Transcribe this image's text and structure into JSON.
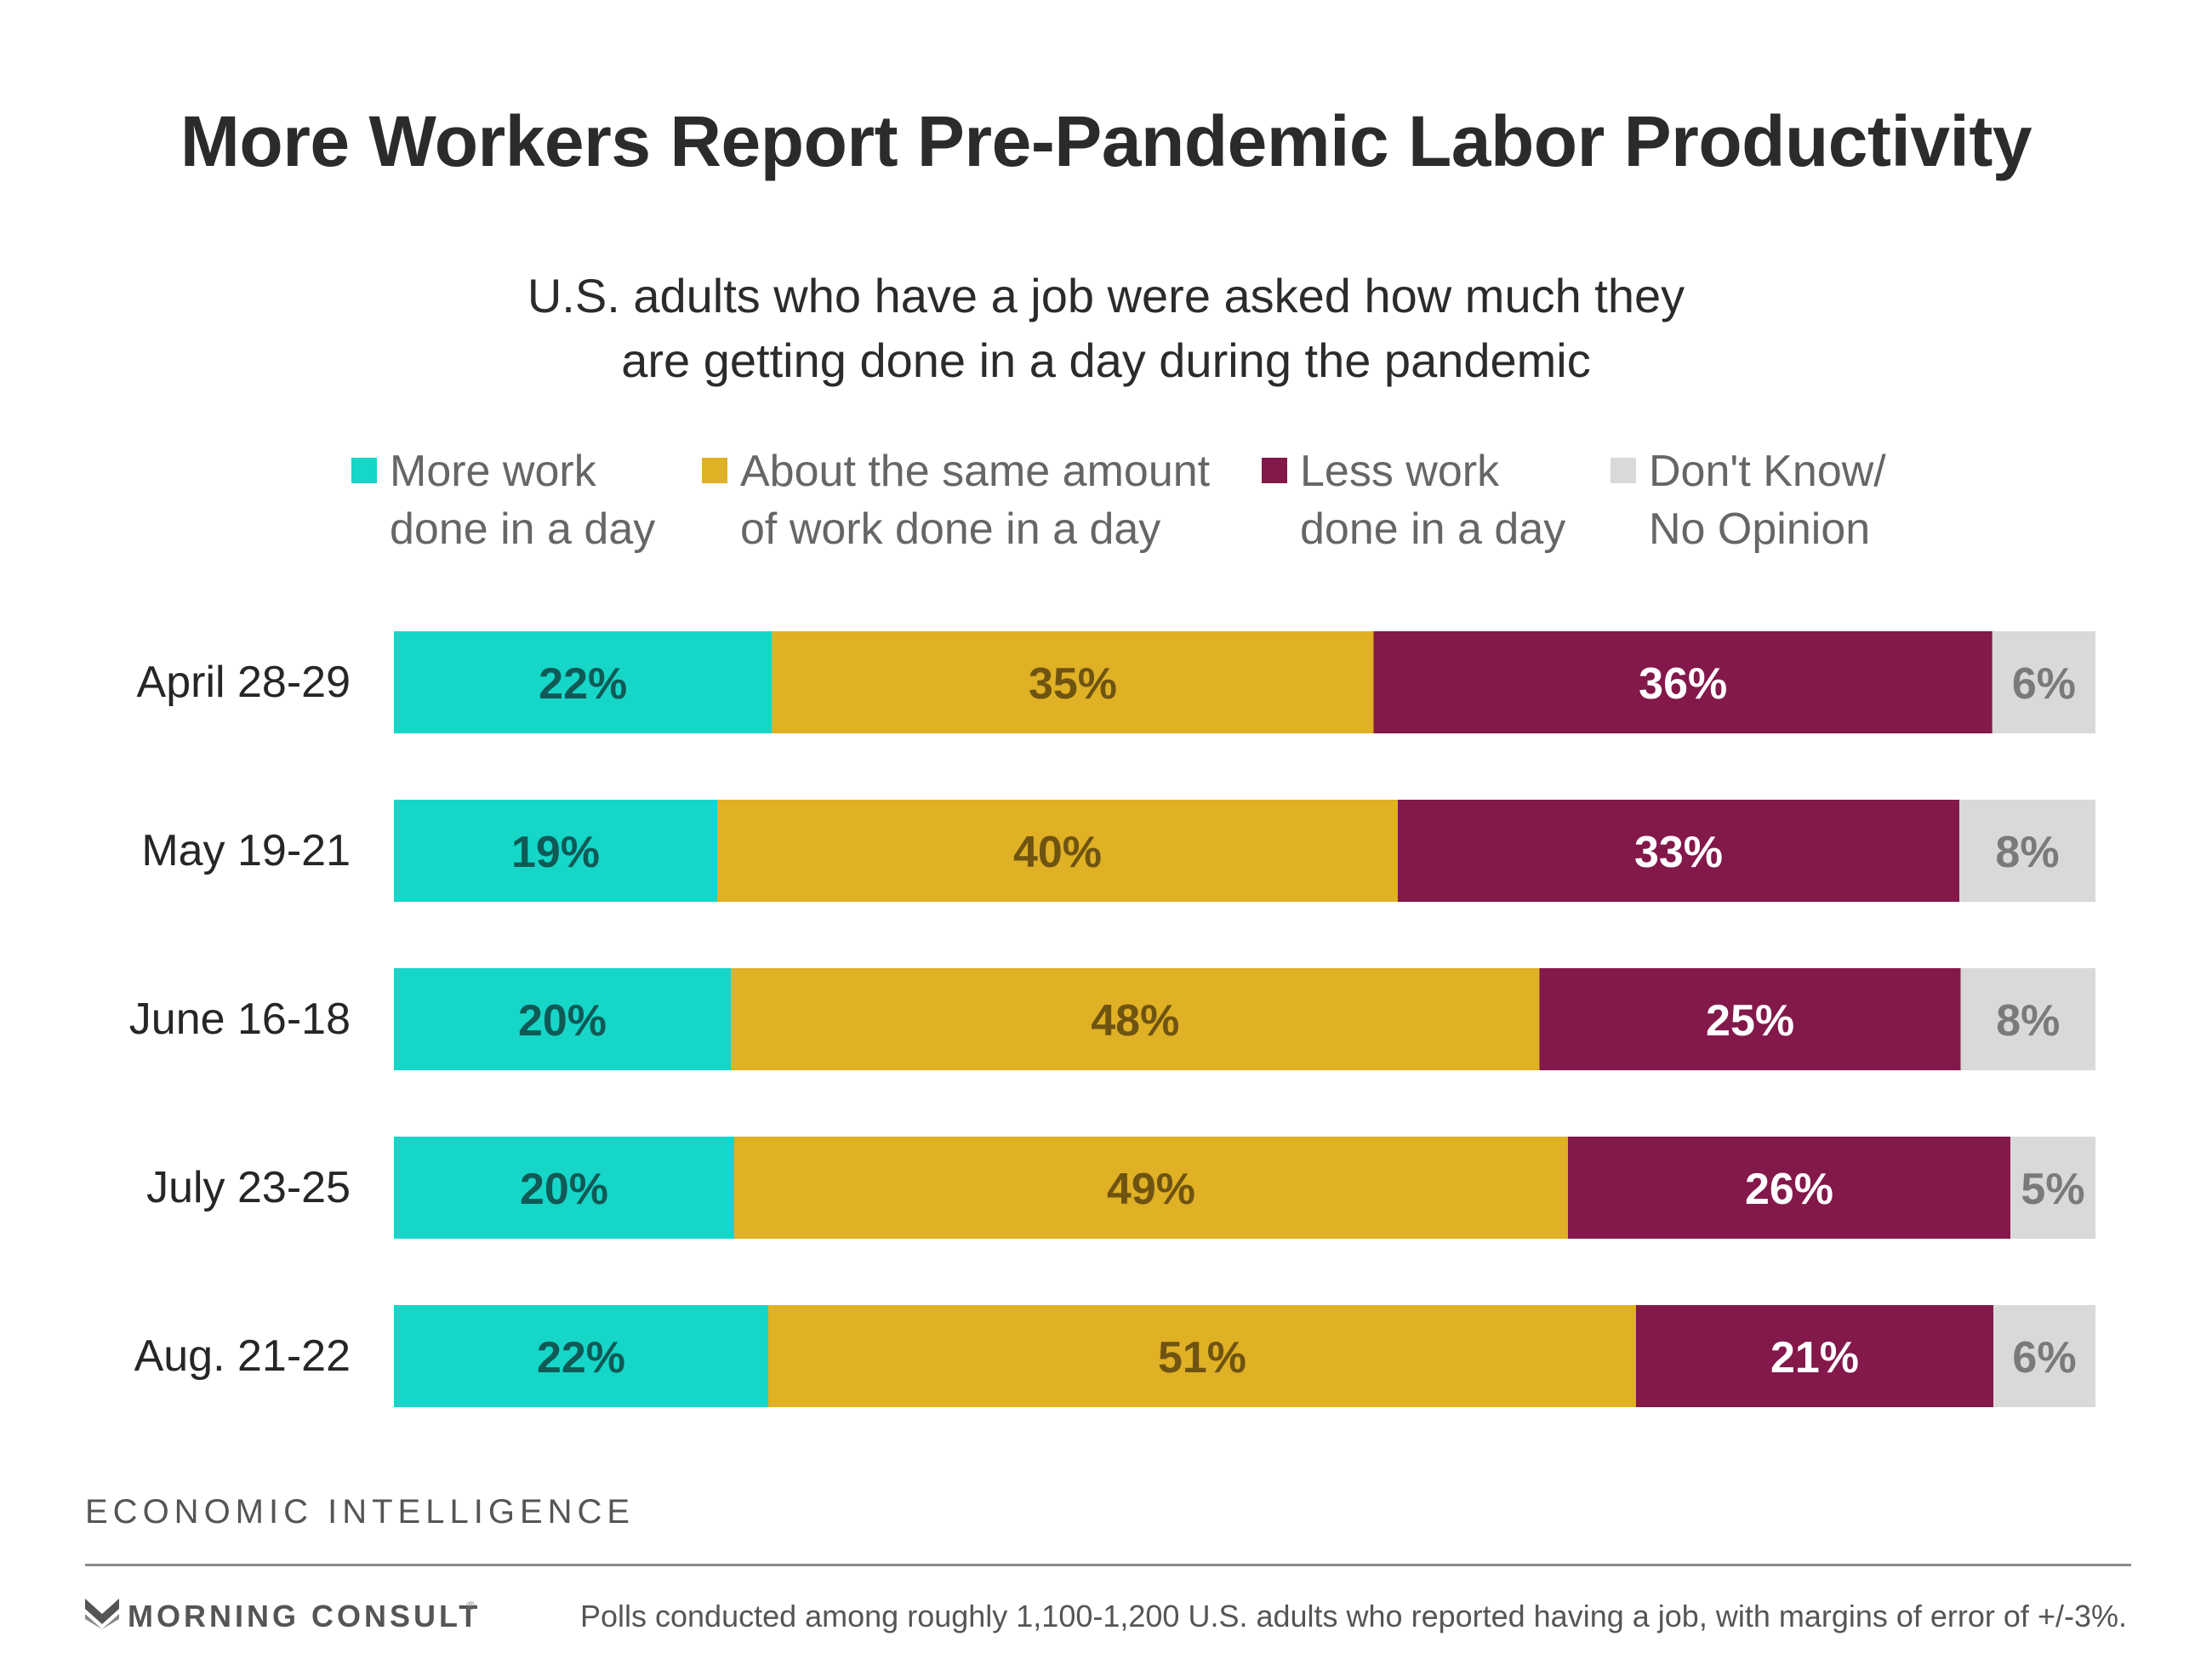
{
  "chart_data": {
    "type": "bar",
    "orientation": "horizontal",
    "stacked": true,
    "title": "More Workers Report Pre-Pandemic Labor Productivity",
    "subtitle": [
      "U.S. adults who have a job were asked how much they",
      "are getting done in a day during the pandemic"
    ],
    "categories": [
      "April 28-29",
      "May 19-21",
      "June 16-18",
      "July 23-25",
      "Aug. 21-22"
    ],
    "series": [
      {
        "name": "More work done in a day",
        "legend_lines": [
          "More work",
          "done in a day"
        ],
        "color": "#16d6c8",
        "label_color": "#0f5a56",
        "values": [
          22,
          19,
          20,
          20,
          22
        ]
      },
      {
        "name": "About the same amount of work done in a day",
        "legend_lines": [
          "About the same amount",
          "of work done in a day"
        ],
        "color": "#e0b025",
        "label_color": "#6e5410",
        "values": [
          35,
          40,
          48,
          49,
          51
        ]
      },
      {
        "name": "Less work done in a day",
        "legend_lines": [
          "Less work",
          "done in a day"
        ],
        "color": "#83184b",
        "label_color": "#ffffff",
        "values": [
          36,
          33,
          25,
          26,
          21
        ]
      },
      {
        "name": "Don't Know/ No Opinion",
        "legend_lines": [
          "Don't Know/",
          "No Opinion"
        ],
        "color": "#d9d9d9",
        "label_color": "#7a7a7a",
        "values": [
          6,
          8,
          8,
          5,
          6
        ]
      }
    ],
    "value_suffix": "%",
    "legend_position": "top",
    "grid": false
  },
  "footer": {
    "section_label": "ECONOMIC INTELLIGENCE",
    "brand": "MORNING CONSULT",
    "note": "Polls conducted among roughly 1,100-1,200 U.S. adults who reported having a job, with margins of error of +/-3%."
  }
}
